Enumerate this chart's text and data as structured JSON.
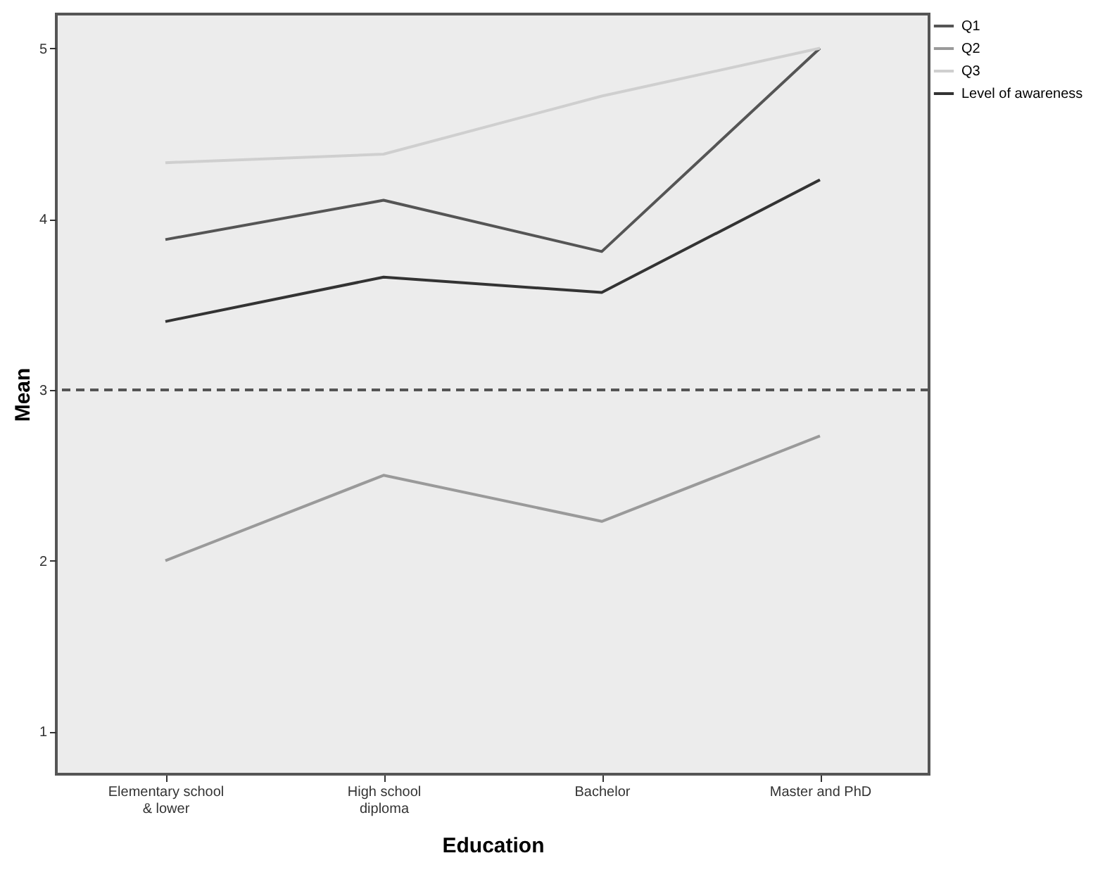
{
  "chart_data": {
    "type": "line",
    "xlabel": "Education",
    "ylabel": "Mean",
    "categories": [
      "Elementary school & lower",
      "High school diploma",
      "Bachelor",
      "Master and PhD"
    ],
    "series": [
      {
        "name": "Q1",
        "color": "#555555",
        "values": [
          3.88,
          4.11,
          3.81,
          5.0
        ]
      },
      {
        "name": "Q2",
        "color": "#9a9a9a",
        "values": [
          2.0,
          2.5,
          2.23,
          2.73
        ]
      },
      {
        "name": "Q3",
        "color": "#cfcfcf",
        "values": [
          4.33,
          4.38,
          4.72,
          5.0
        ]
      },
      {
        "name": "Level of awareness",
        "color": "#333333",
        "values": [
          3.4,
          3.66,
          3.57,
          4.23
        ]
      }
    ],
    "ylim": [
      0.75,
      5.2
    ],
    "yticks": [
      1,
      2,
      3,
      4,
      5
    ],
    "ref_lines": [
      {
        "axis": "y",
        "value": 3,
        "color": "#555555",
        "line_style": "dashed"
      }
    ],
    "legend": "top right",
    "grid": false,
    "marker": "none",
    "line_style": "solid"
  }
}
